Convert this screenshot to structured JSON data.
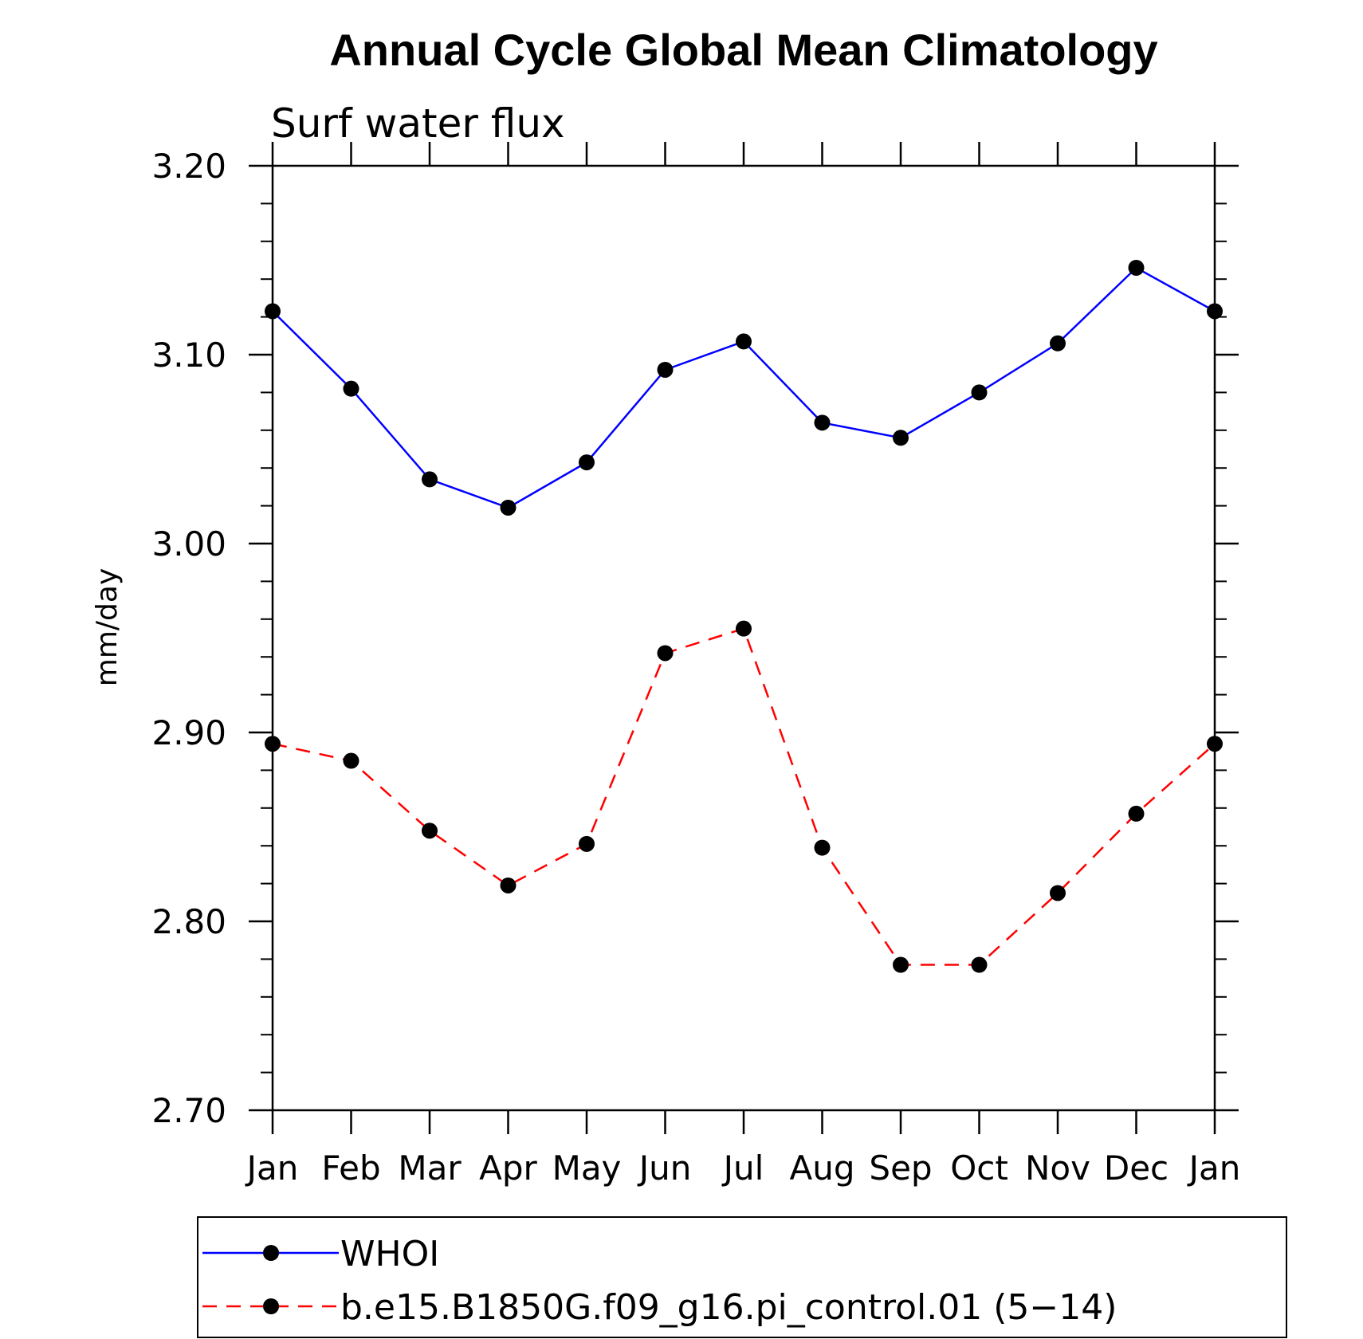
{
  "chart_data": {
    "type": "line",
    "title": "Annual Cycle Global Mean Climatology",
    "subtitle": "Surf water flux",
    "xlabel": "",
    "ylabel": "mm/day",
    "categories": [
      "Jan",
      "Feb",
      "Mar",
      "Apr",
      "May",
      "Jun",
      "Jul",
      "Aug",
      "Sep",
      "Oct",
      "Nov",
      "Dec",
      "Jan"
    ],
    "ylim": [
      2.7,
      3.2
    ],
    "y_ticks": [
      2.7,
      2.8,
      2.9,
      3.0,
      3.1,
      3.2
    ],
    "y_tick_labels": [
      "2.70",
      "2.80",
      "2.90",
      "3.00",
      "3.10",
      "3.20"
    ],
    "y_minor_step": 0.02,
    "grid": false,
    "legend_position": "bottom",
    "series": [
      {
        "name": "WHOI",
        "color": "#0000ff",
        "line_style": "solid",
        "marker": "filled-circle",
        "values": [
          3.123,
          3.082,
          3.034,
          3.019,
          3.043,
          3.092,
          3.107,
          3.064,
          3.056,
          3.08,
          3.106,
          3.146,
          3.123
        ]
      },
      {
        "name": "b.e15.B1850G.f09_g16.pi_control.01 (5−14)",
        "color": "#ff0000",
        "line_style": "dashed",
        "marker": "filled-circle",
        "values": [
          2.894,
          2.885,
          2.848,
          2.819,
          2.841,
          2.942,
          2.955,
          2.839,
          2.777,
          2.777,
          2.815,
          2.857,
          2.894
        ]
      }
    ]
  }
}
